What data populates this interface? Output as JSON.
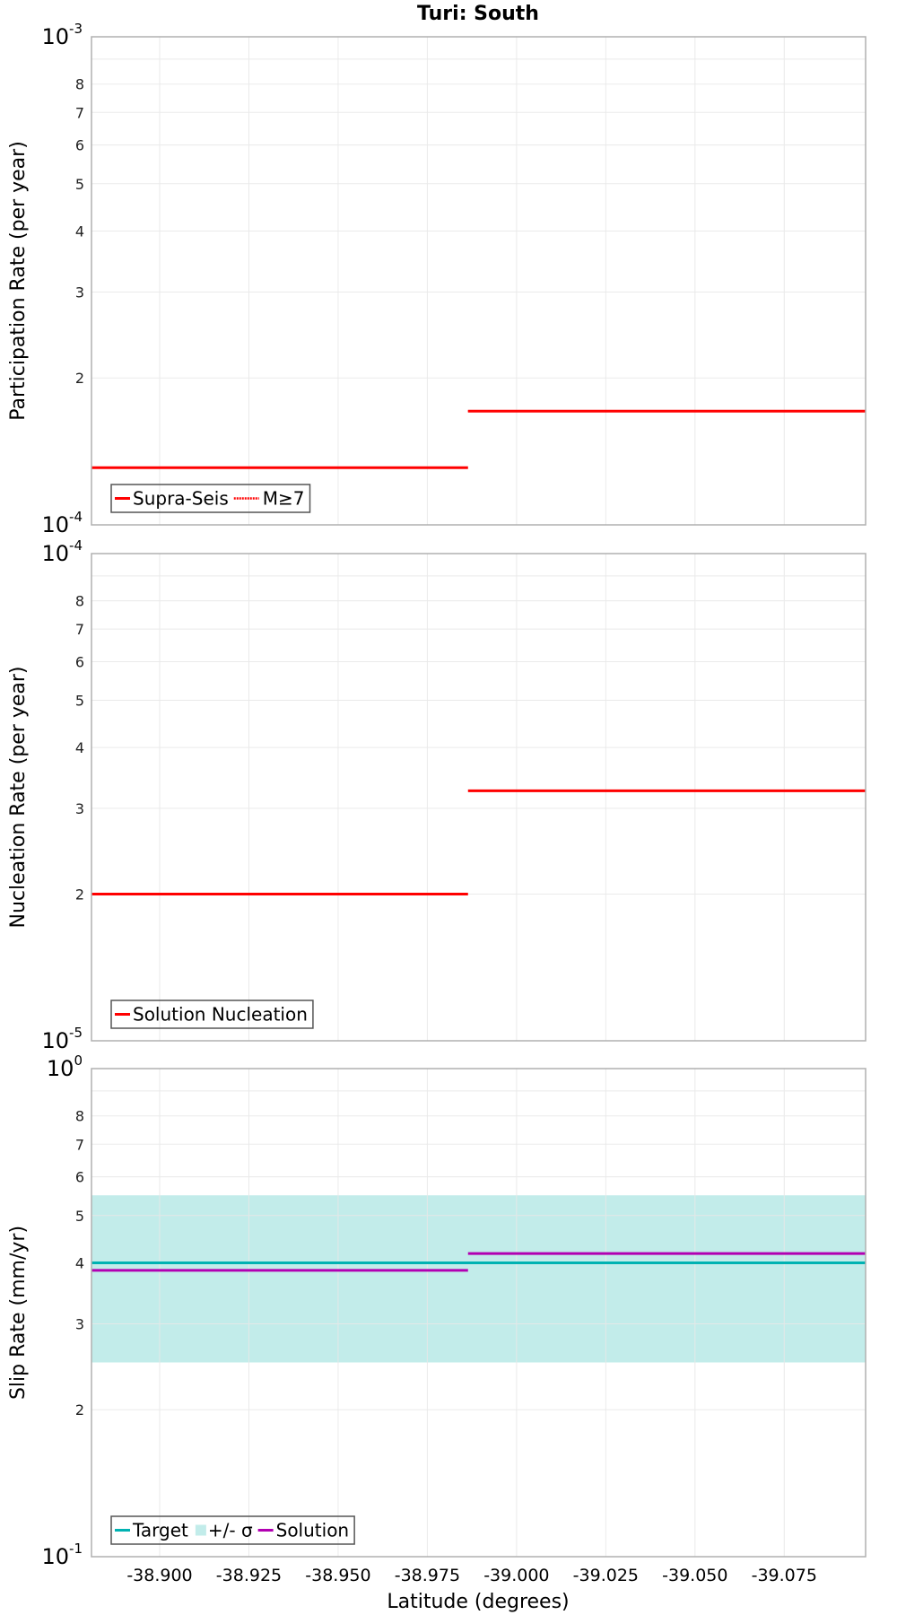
{
  "title": "Turi: South",
  "colors": {
    "supra_seis": "#ff0000",
    "nucleation": "#ff0000",
    "target": "#00b2b2",
    "sigma_band": "#c2ecea",
    "solution": "#b200b2",
    "grid": "#e8e8e8",
    "frame": "#b0b0b0"
  },
  "xaxis": {
    "label": "Latitude (degrees)",
    "range": [
      -38.8809,
      -39.0978
    ],
    "ticks": [
      -38.9,
      -38.925,
      -38.95,
      -38.975,
      -39.0,
      -39.025,
      -39.05,
      -39.075
    ],
    "tick_labels": [
      "-38.900",
      "-38.925",
      "-38.950",
      "-38.975",
      "-39.000",
      "-39.025",
      "-39.050",
      "-39.075"
    ]
  },
  "panels": [
    {
      "name": "participation",
      "ylabel": "Participation Rate (per year)",
      "y_min_exp": -4,
      "y_max_exp": -3,
      "top_label": {
        "base": "10",
        "exp": "-3"
      },
      "bottom_label": {
        "base": "10",
        "exp": "-4"
      },
      "minor_labels": [
        "2",
        "3",
        "4",
        "5",
        "6",
        "7",
        "8"
      ],
      "legend": [
        {
          "label": "Supra-Seis",
          "style": "solid",
          "color_key": "supra_seis"
        },
        {
          "label": "M≥7",
          "style": "dotted",
          "color_key": "supra_seis"
        }
      ]
    },
    {
      "name": "nucleation",
      "ylabel": "Nucleation Rate (per year)",
      "y_min_exp": -5,
      "y_max_exp": -4,
      "top_label": {
        "base": "10",
        "exp": "-4"
      },
      "bottom_label": {
        "base": "10",
        "exp": "-5"
      },
      "minor_labels": [
        "2",
        "3",
        "4",
        "5",
        "6",
        "7",
        "8"
      ],
      "legend": [
        {
          "label": "Solution Nucleation",
          "style": "solid",
          "color_key": "nucleation"
        }
      ]
    },
    {
      "name": "slip",
      "ylabel": "Slip Rate (mm/yr)",
      "y_min_exp": -1,
      "y_max_exp": 0,
      "top_label": {
        "base": "10",
        "exp": "0"
      },
      "bottom_label": {
        "base": "10",
        "exp": "-1"
      },
      "minor_labels": [
        "2",
        "3",
        "4",
        "5",
        "6",
        "7",
        "8"
      ],
      "legend": [
        {
          "label": "Target",
          "style": "solid",
          "color_key": "target"
        },
        {
          "label": "+/- σ",
          "style": "box",
          "color_key": "sigma_band"
        },
        {
          "label": "Solution",
          "style": "solid",
          "color_key": "solution"
        }
      ]
    }
  ],
  "chart_data": [
    {
      "type": "line",
      "title": "Turi: South",
      "xlabel": "Latitude (degrees)",
      "ylabel": "Participation Rate (per year)",
      "yscale": "log",
      "ylim": [
        0.0001,
        0.001
      ],
      "xlim": [
        -38.8809,
        -39.0978
      ],
      "grid": true,
      "legend_position": "lower-left",
      "series": [
        {
          "name": "Supra-Seis",
          "style": "solid",
          "segments": [
            {
              "x": [
                -38.8809,
                -38.9864
              ],
              "y": 0.000131
            },
            {
              "x": [
                -38.9864,
                -39.0978
              ],
              "y": 0.000171
            }
          ]
        },
        {
          "name": "M≥7",
          "style": "dotted",
          "segments": [
            {
              "x": [
                -38.8809,
                -38.9864
              ],
              "y": 0.000131
            },
            {
              "x": [
                -38.9864,
                -39.0978
              ],
              "y": 0.000171
            }
          ]
        }
      ]
    },
    {
      "type": "line",
      "xlabel": "Latitude (degrees)",
      "ylabel": "Nucleation Rate (per year)",
      "yscale": "log",
      "ylim": [
        1e-05,
        0.0001
      ],
      "xlim": [
        -38.8809,
        -39.0978
      ],
      "grid": true,
      "legend_position": "lower-left",
      "series": [
        {
          "name": "Solution Nucleation",
          "style": "solid",
          "segments": [
            {
              "x": [
                -38.8809,
                -38.9864
              ],
              "y": 2e-05
            },
            {
              "x": [
                -38.9864,
                -39.0978
              ],
              "y": 3.26e-05
            }
          ]
        }
      ]
    },
    {
      "type": "line",
      "xlabel": "Latitude (degrees)",
      "ylabel": "Slip Rate (mm/yr)",
      "yscale": "log",
      "ylim": [
        0.1,
        1.0
      ],
      "ylim_note": "axis ticks labeled 10^-1 .. 10^0 with minor labels 2..8",
      "xlim": [
        -38.8809,
        -39.0978
      ],
      "grid": true,
      "legend_position": "lower-left",
      "series": [
        {
          "name": "Target",
          "style": "solid",
          "segments": [
            {
              "x": [
                -38.8809,
                -39.0978
              ],
              "y": 0.4
            }
          ]
        },
        {
          "name": "+/- σ",
          "style": "band",
          "segments": [
            {
              "x": [
                -38.8809,
                -39.0978
              ],
              "y_low": 0.25,
              "y_high": 0.55
            }
          ]
        },
        {
          "name": "Solution",
          "style": "solid",
          "segments": [
            {
              "x": [
                -38.8809,
                -38.9864
              ],
              "y": 0.386
            },
            {
              "x": [
                -38.9864,
                -39.0978
              ],
              "y": 0.418
            }
          ]
        }
      ]
    }
  ]
}
